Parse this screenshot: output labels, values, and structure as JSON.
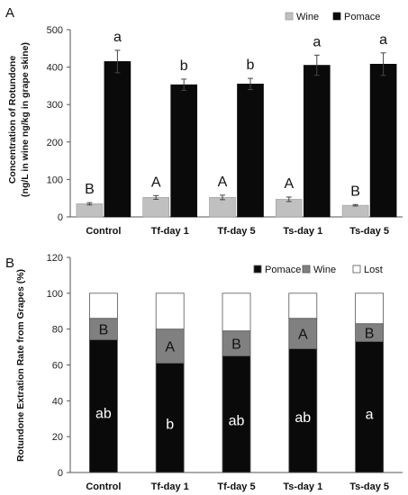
{
  "chart_data": [
    {
      "panel_label": "A",
      "type": "bar",
      "ylabel_lines": [
        "Concentration of Rotundone",
        "(ng/L in wine ng/kg in grape skine)"
      ],
      "categories": [
        "Control",
        "Tf-day 1",
        "Tf-day 5",
        "Ts-day 1",
        "Ts-day 5"
      ],
      "ylim": [
        0,
        500
      ],
      "yticks": [
        "0",
        "100",
        "200",
        "300",
        "400",
        "500"
      ],
      "legend_position": "top-right",
      "series": [
        {
          "name": "Wine",
          "color": "#c0c0c0",
          "values": [
            35,
            52,
            52,
            47,
            31
          ],
          "errors": [
            3,
            5,
            6,
            6,
            2
          ],
          "letters": [
            "B",
            "A",
            "A",
            "A",
            "B"
          ]
        },
        {
          "name": "Pomace",
          "color": "#0a0a0a",
          "values": [
            415,
            353,
            355,
            405,
            408
          ],
          "errors": [
            30,
            15,
            15,
            27,
            30
          ],
          "letters": [
            "a",
            "b",
            "b",
            "a",
            "a"
          ]
        }
      ]
    },
    {
      "panel_label": "B",
      "type": "bar",
      "stacked": true,
      "ylabel": "Rotundone Extration Rate from Grapes  (%)",
      "categories": [
        "Control",
        "Tf-day 1",
        "Tf-day 5",
        "Ts-day 1",
        "Ts-day 5"
      ],
      "ylim": [
        0,
        120
      ],
      "yticks": [
        "0",
        "20",
        "40",
        "60",
        "80",
        "100",
        "120"
      ],
      "legend_position": "top-right",
      "series": [
        {
          "name": "Pomace",
          "color": "#0a0a0a",
          "values": [
            74,
            61,
            65,
            69,
            73
          ],
          "letters": [
            "ab",
            "b",
            "ab",
            "ab",
            "a"
          ]
        },
        {
          "name": "Wine",
          "color": "#808080",
          "values": [
            12,
            19,
            14,
            17,
            10
          ],
          "letters": [
            "B",
            "A",
            "B",
            "A",
            "B"
          ]
        },
        {
          "name": "Lost",
          "color": "#ffffff",
          "values": [
            14,
            20,
            21,
            14,
            17
          ]
        }
      ]
    }
  ]
}
